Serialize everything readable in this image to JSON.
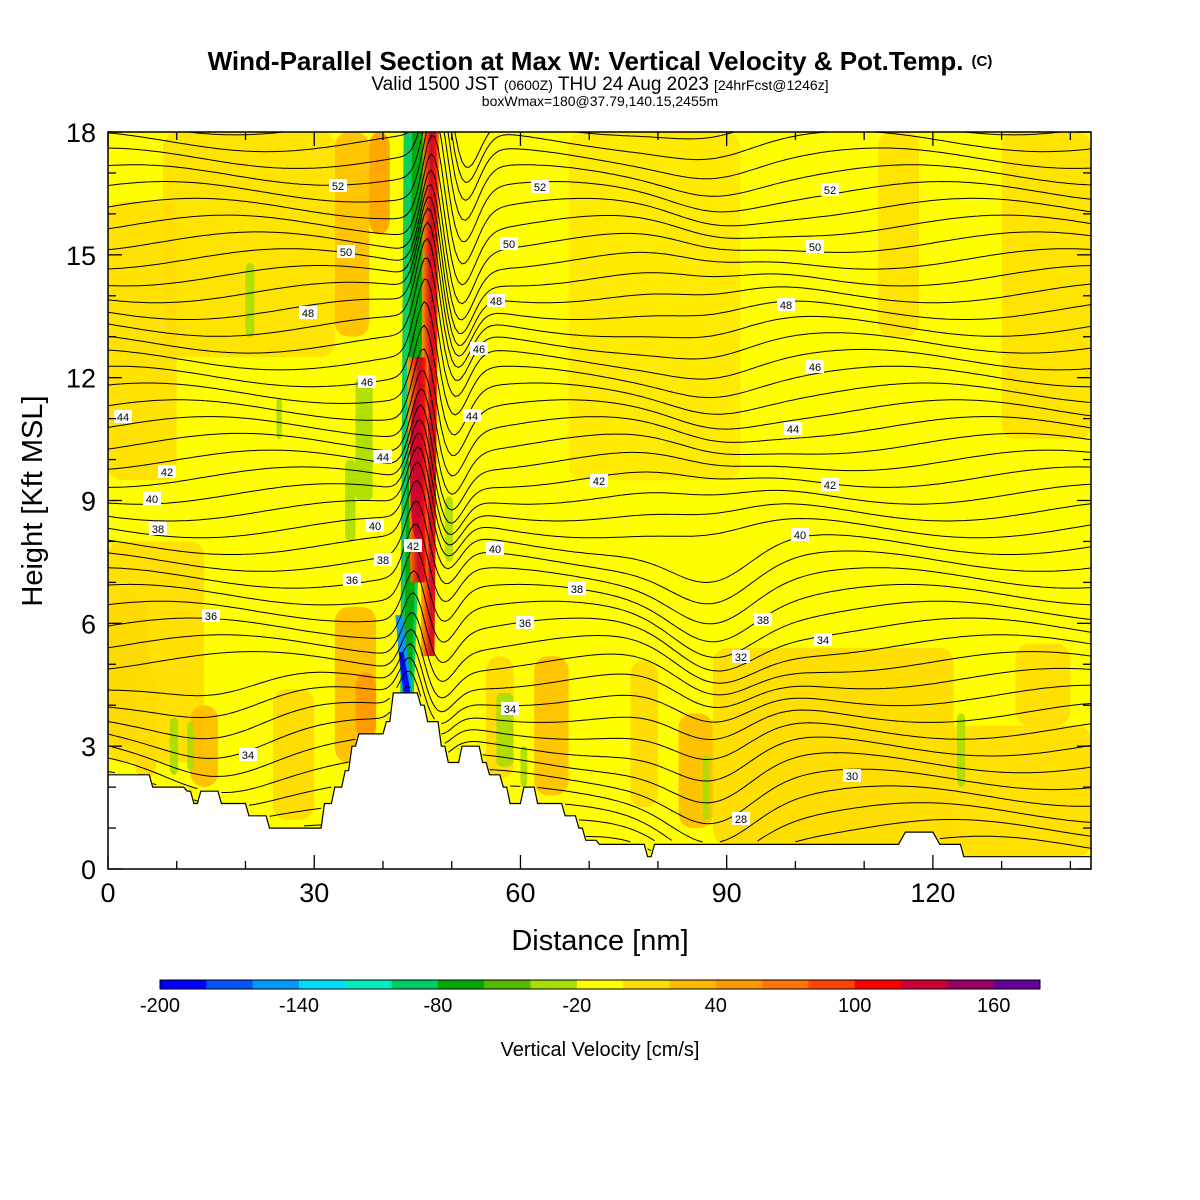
{
  "titles": {
    "main_text": "Wind-Parallel Section at Max W: Vertical Velocity & Pot.Temp.",
    "main_mark": "(C)",
    "valid_a": "Valid 1500 JST",
    "valid_b": "(0600Z)",
    "valid_c": "THU 24 Aug 2023",
    "valid_d": "[24hrFcst@1246z]",
    "box_line": "boxWmax=180@37.79,140.15,2455m"
  },
  "chart_data": {
    "type": "heatmap",
    "xlabel": "Distance [nm]",
    "ylabel": "Height [Kft MSL]",
    "xlim": [
      0,
      143
    ],
    "ylim": [
      0,
      18
    ],
    "x_ticks": [
      0,
      30,
      60,
      90,
      120
    ],
    "y_ticks": [
      0,
      3,
      6,
      9,
      12,
      15,
      18
    ],
    "terrain_kft": [
      [
        0,
        2.3
      ],
      [
        6,
        2.3
      ],
      [
        6.5,
        2.0
      ],
      [
        11,
        2.0
      ],
      [
        11.5,
        1.9
      ],
      [
        12,
        1.9
      ],
      [
        12.5,
        1.6
      ],
      [
        13,
        1.6
      ],
      [
        13.5,
        1.9
      ],
      [
        16,
        1.9
      ],
      [
        16.5,
        1.6
      ],
      [
        20,
        1.6
      ],
      [
        20.5,
        1.3
      ],
      [
        23,
        1.3
      ],
      [
        23.5,
        1.0
      ],
      [
        31,
        1.0
      ],
      [
        31.5,
        1.6
      ],
      [
        32.5,
        1.6
      ],
      [
        33,
        2.0
      ],
      [
        34,
        2.0
      ],
      [
        34.5,
        2.4
      ],
      [
        35,
        2.4
      ],
      [
        35.5,
        3.0
      ],
      [
        36,
        3.0
      ],
      [
        36.5,
        3.3
      ],
      [
        40,
        3.3
      ],
      [
        40.5,
        3.6
      ],
      [
        41,
        3.6
      ],
      [
        41.5,
        4.3
      ],
      [
        45,
        4.3
      ],
      [
        45.5,
        4.0
      ],
      [
        46,
        4.0
      ],
      [
        46.5,
        3.6
      ],
      [
        48,
        3.6
      ],
      [
        48.5,
        3.0
      ],
      [
        49,
        3.0
      ],
      [
        49.5,
        2.6
      ],
      [
        51,
        2.6
      ],
      [
        51.5,
        3.0
      ],
      [
        54,
        3.0
      ],
      [
        54.5,
        2.6
      ],
      [
        55,
        2.6
      ],
      [
        55.5,
        2.3
      ],
      [
        57,
        2.3
      ],
      [
        57.5,
        2.0
      ],
      [
        58,
        2.0
      ],
      [
        58.5,
        1.6
      ],
      [
        60,
        1.6
      ],
      [
        60.5,
        2.0
      ],
      [
        62,
        2.0
      ],
      [
        62.5,
        1.6
      ],
      [
        66,
        1.6
      ],
      [
        66.5,
        1.3
      ],
      [
        68,
        1.3
      ],
      [
        68.5,
        1.0
      ],
      [
        69,
        1.0
      ],
      [
        69.5,
        0.7
      ],
      [
        71,
        0.7
      ],
      [
        71.5,
        0.6
      ],
      [
        78,
        0.6
      ],
      [
        78.5,
        0.3
      ],
      [
        79,
        0.3
      ],
      [
        79.5,
        0.6
      ],
      [
        115,
        0.6
      ],
      [
        116,
        0.9
      ],
      [
        120,
        0.9
      ],
      [
        121,
        0.6
      ],
      [
        124,
        0.6
      ],
      [
        124.5,
        0.3
      ],
      [
        143,
        0.3
      ]
    ],
    "colorbar": {
      "label": "Vertical Velocity [cm/s]",
      "tick_labels": [
        "-200",
        "-140",
        "-80",
        "-20",
        "40",
        "100",
        "160"
      ],
      "colors": [
        "#0000ff",
        "#0055ff",
        "#0099ff",
        "#00ddff",
        "#00eebb",
        "#00cc66",
        "#00aa00",
        "#55bb00",
        "#aadd00",
        "#ffff00",
        "#ffdd00",
        "#ffbb00",
        "#ff9900",
        "#ff7700",
        "#ff4400",
        "#ff0000",
        "#cc0033",
        "#990066",
        "#660099"
      ]
    },
    "theta_label_values": [
      "52",
      "52",
      "52",
      "50",
      "50",
      "50",
      "48",
      "48",
      "48",
      "46",
      "46",
      "46",
      "44",
      "44",
      "44",
      "44",
      "42",
      "42",
      "42",
      "42",
      "40",
      "40",
      "40",
      "40",
      "38",
      "38",
      "38",
      "38",
      "36",
      "36",
      "36",
      "34",
      "34",
      "34",
      "32",
      "30",
      "28"
    ]
  }
}
